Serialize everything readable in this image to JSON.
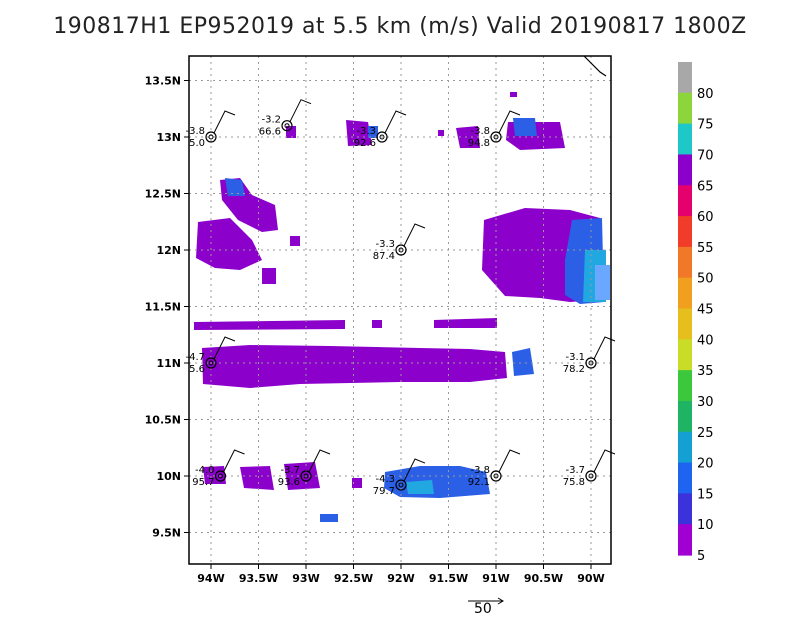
{
  "title": "190817H1 EP952019 at 5.5 km (m/s) Valid 20190817 1800Z",
  "axes": {
    "lon_ticks": [
      "94W",
      "93.5W",
      "93W",
      "92.5W",
      "92W",
      "91.5W",
      "91W",
      "90.5W",
      "90W"
    ],
    "lat_ticks": [
      "13.5N",
      "13N",
      "12.5N",
      "12N",
      "11.5N",
      "11N",
      "10.5N",
      "10N",
      "9.5N"
    ]
  },
  "colorbar": {
    "labels": [
      "80",
      "75",
      "70",
      "65",
      "60",
      "55",
      "50",
      "45",
      "40",
      "35",
      "30",
      "25",
      "20",
      "15",
      "10",
      "5"
    ],
    "colors": [
      "#a8a8a8",
      "#8cd63c",
      "#1ec8c8",
      "#8c00cc",
      "#e6006e",
      "#f03c28",
      "#f07828",
      "#f0a01e",
      "#e6be1e",
      "#c8dc28",
      "#3cc83c",
      "#1eb464",
      "#14a0d2",
      "#1e64f0",
      "#3c32dc",
      "#a000d2"
    ]
  },
  "stations": [
    {
      "top": "-3.8",
      "bottom": "5.0",
      "lon": -94.0,
      "lat": 13.0
    },
    {
      "top": "-3.2",
      "bottom": "66.6",
      "lon": -93.2,
      "lat": 13.1
    },
    {
      "top": "-3.3",
      "bottom": "92.6",
      "lon": -92.2,
      "lat": 13.0
    },
    {
      "top": "-3.8",
      "bottom": "94.8",
      "lon": -91.0,
      "lat": 13.0
    },
    {
      "top": "-3.3",
      "bottom": "87.4",
      "lon": -92.0,
      "lat": 12.0
    },
    {
      "top": "-4.7",
      "bottom": "5.6",
      "lon": -94.0,
      "lat": 11.0
    },
    {
      "top": "-3.1",
      "bottom": "78.2",
      "lon": -90.0,
      "lat": 11.0
    },
    {
      "top": "-4.0",
      "bottom": "95.7",
      "lon": -93.9,
      "lat": 10.0
    },
    {
      "top": "-3.7",
      "bottom": "93.6",
      "lon": -93.0,
      "lat": 10.0
    },
    {
      "top": "-4.3",
      "bottom": "79.7",
      "lon": -92.0,
      "lat": 9.92
    },
    {
      "top": "-3.8",
      "bottom": "92.1",
      "lon": -91.0,
      "lat": 10.0
    },
    {
      "top": "-3.7",
      "bottom": "75.8",
      "lon": -90.0,
      "lat": 10.0
    }
  ],
  "reference_vector": {
    "label": "50"
  }
}
